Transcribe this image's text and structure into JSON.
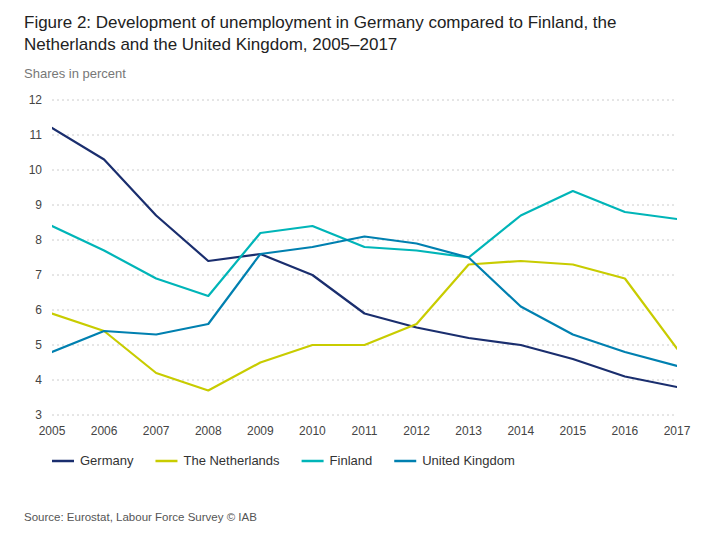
{
  "chart_data": {
    "type": "line",
    "title": "Figure 2: Development of unemployment in Germany compared to Finland, the Netherlands and the United Kingdom, 2005–2017",
    "subtitle": "Shares in percent",
    "annotations": [
      "Source: Eurostat, Labour Force Survey © IAB"
    ],
    "x": [
      2005,
      2006,
      2007,
      2008,
      2009,
      2010,
      2011,
      2012,
      2013,
      2014,
      2015,
      2016,
      2017
    ],
    "xlim": [
      2005,
      2017
    ],
    "xticks": [
      2005,
      2006,
      2007,
      2008,
      2009,
      2010,
      2011,
      2012,
      2013,
      2014,
      2015,
      2016,
      2017
    ],
    "series": [
      {
        "name": "Germany",
        "color": "#1a2e6e",
        "values": [
          11.2,
          10.3,
          8.7,
          7.4,
          7.6,
          7.0,
          5.9,
          5.5,
          5.2,
          5.0,
          4.6,
          4.1,
          3.8
        ]
      },
      {
        "name": "The Netherlands",
        "color": "#c8cc00",
        "values": [
          5.9,
          5.4,
          4.2,
          3.7,
          4.5,
          5.0,
          5.0,
          5.6,
          7.3,
          7.4,
          7.3,
          6.9,
          4.9
        ]
      },
      {
        "name": "Finland",
        "color": "#00b5b8",
        "values": [
          8.4,
          7.7,
          6.9,
          6.4,
          8.2,
          8.4,
          7.8,
          7.7,
          7.5,
          8.7,
          9.4,
          8.8,
          8.6
        ]
      },
      {
        "name": "United Kingdom",
        "color": "#0080b0",
        "values": [
          4.8,
          5.4,
          5.3,
          5.6,
          7.6,
          7.8,
          8.1,
          7.9,
          7.5,
          6.1,
          5.3,
          4.8,
          4.4
        ]
      }
    ],
    "ylim": [
      3,
      12
    ],
    "yticks": [
      3,
      4,
      5,
      6,
      7,
      8,
      9,
      10,
      11,
      12
    ],
    "grid": true,
    "legend": "bottom"
  }
}
